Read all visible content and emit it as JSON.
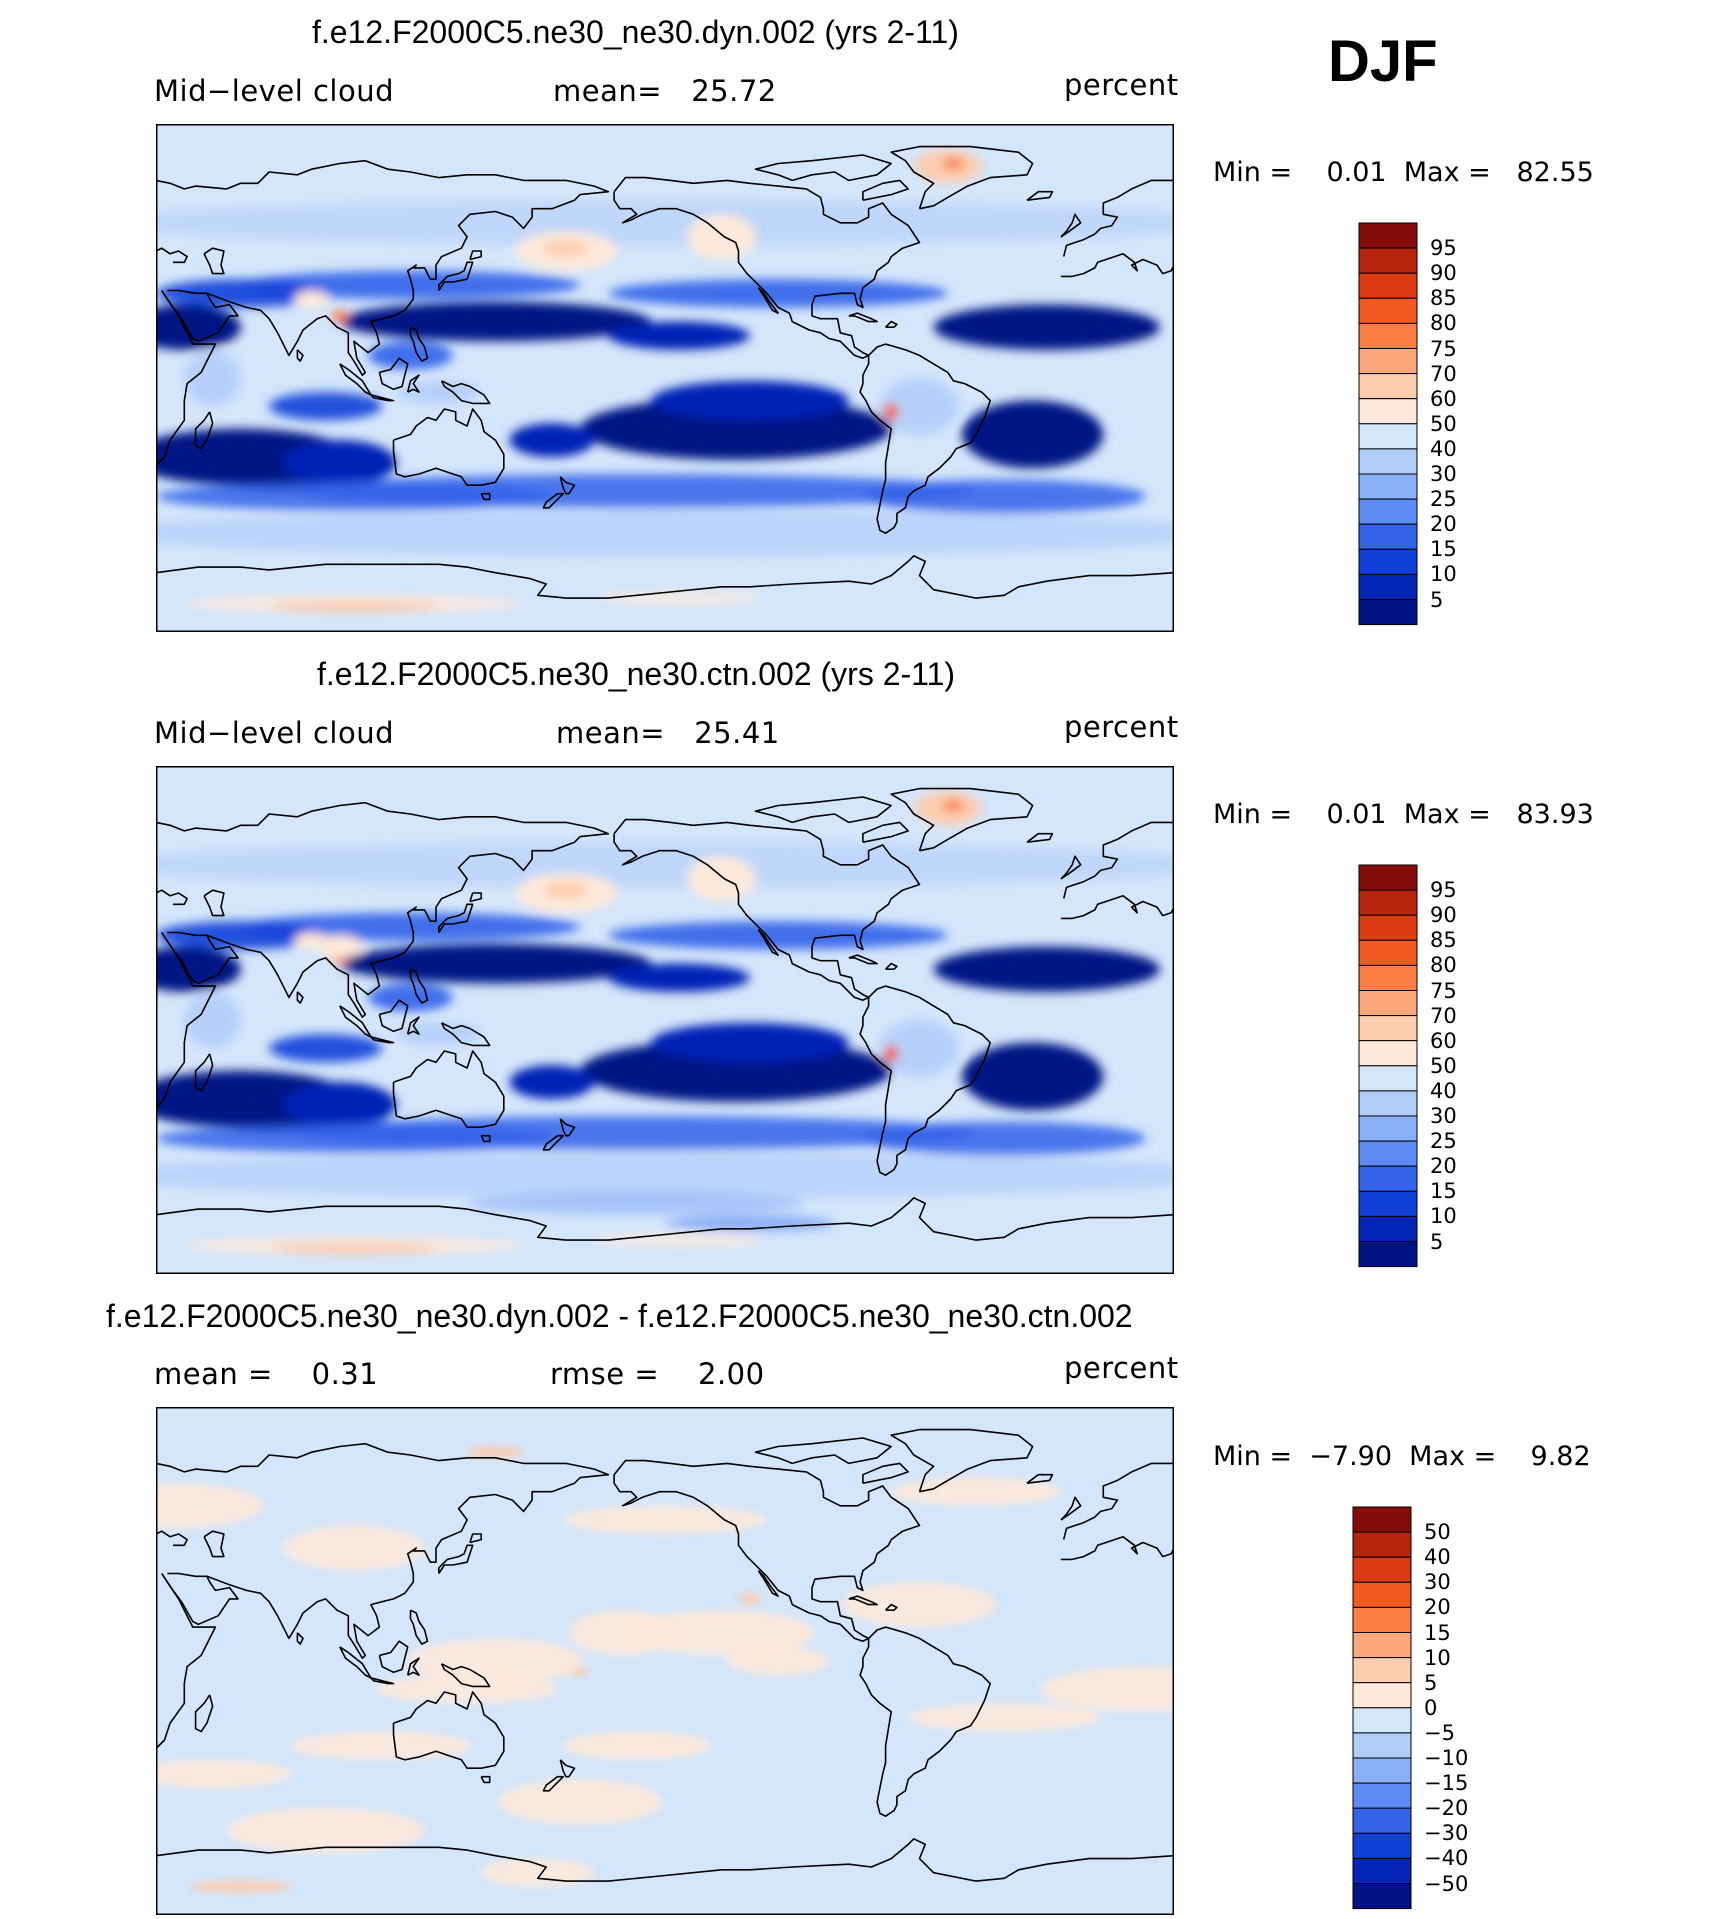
{
  "season": "DJF",
  "panels": [
    {
      "title": "f.e12.F2000C5.ne30_ne30.dyn.002 (yrs 2-11)",
      "left_label": "Mid−level cloud",
      "center_label": "mean=   25.72",
      "units": "percent",
      "minmax": "Min =    0.01  Max =   82.55",
      "kind": "mean",
      "colorbar": {
        "labels": [
          "95",
          "90",
          "85",
          "80",
          "75",
          "70",
          "60",
          "50",
          "40",
          "30",
          "25",
          "20",
          "15",
          "10",
          "5"
        ],
        "colors": [
          "#850d09",
          "#b8240e",
          "#dc3a10",
          "#f25a20",
          "#fb7e45",
          "#fda77c",
          "#fdcdb0",
          "#fee9da",
          "#d4e6fb",
          "#b0cdfa",
          "#89aff7",
          "#5d8bf3",
          "#3263ea",
          "#1140d9",
          "#0424b6",
          "#021485"
        ]
      }
    },
    {
      "title": "f.e12.F2000C5.ne30_ne30.ctn.002 (yrs 2-11)",
      "left_label": "Mid−level cloud",
      "center_label": "mean=   25.41",
      "units": "percent",
      "minmax": "Min =    0.01  Max =   83.93",
      "kind": "mean",
      "colorbar": {
        "labels": [
          "95",
          "90",
          "85",
          "80",
          "75",
          "70",
          "60",
          "50",
          "40",
          "30",
          "25",
          "20",
          "15",
          "10",
          "5"
        ],
        "colors": [
          "#850d09",
          "#b8240e",
          "#dc3a10",
          "#f25a20",
          "#fb7e45",
          "#fda77c",
          "#fdcdb0",
          "#fee9da",
          "#d4e6fb",
          "#b0cdfa",
          "#89aff7",
          "#5d8bf3",
          "#3263ea",
          "#1140d9",
          "#0424b6",
          "#021485"
        ]
      }
    },
    {
      "title": "f.e12.F2000C5.ne30_ne30.dyn.002 - f.e12.F2000C5.ne30_ne30.ctn.002",
      "left_label": "mean =    0.31",
      "center_label": "rmse =    2.00",
      "units": "percent",
      "minmax": "Min =  −7.90  Max =    9.82",
      "kind": "diff",
      "colorbar": {
        "labels": [
          "50",
          "40",
          "30",
          "20",
          "15",
          "10",
          "5",
          "0",
          "−5",
          "−10",
          "−15",
          "−20",
          "−30",
          "−40",
          "−50"
        ],
        "colors": [
          "#850d09",
          "#b8240e",
          "#dc3a10",
          "#f25a20",
          "#fb7e45",
          "#fda77c",
          "#fdcdb0",
          "#fee9da",
          "#d4e6fb",
          "#b0cdfa",
          "#89aff7",
          "#5d8bf3",
          "#3263ea",
          "#1140d9",
          "#0424b6",
          "#021485"
        ]
      }
    }
  ]
}
